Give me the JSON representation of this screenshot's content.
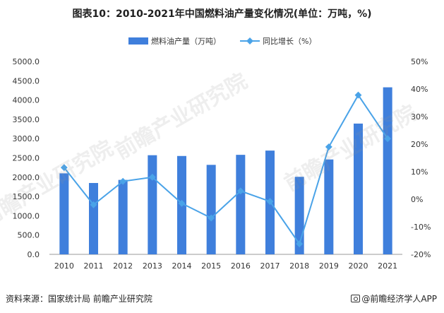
{
  "title": "图表10：2010-2021年中国燃料油产量变化情况(单位：万吨，%)",
  "source": "资料来源：国家统计局 前瞻产业研究院",
  "brand": "@前瞻经济学人APP",
  "watermark": "前瞻产业研究院",
  "colors": {
    "bar": "#3f7fdc",
    "line": "#4aa3e8",
    "axis": "#999999",
    "text": "#333333"
  },
  "chart_data": {
    "type": "bar",
    "categories": [
      "2010",
      "2011",
      "2012",
      "2013",
      "2014",
      "2015",
      "2016",
      "2017",
      "2018",
      "2019",
      "2020",
      "2021"
    ],
    "series": [
      {
        "name": "燃料油产量（万吨）",
        "type": "bar",
        "axis": "left",
        "values": [
          2100,
          1850,
          1930,
          2570,
          2550,
          2320,
          2580,
          2690,
          2010,
          2460,
          3390,
          4330
        ]
      },
      {
        "name": "同比增长（%）",
        "type": "line",
        "axis": "right",
        "values": [
          11.5,
          -2.0,
          6.5,
          8.0,
          -1.5,
          -6.8,
          3.0,
          -0.8,
          -16.2,
          19.0,
          37.8,
          22.0
        ]
      }
    ],
    "y_left": {
      "min": 0,
      "max": 5000,
      "step": 500,
      "tick_labels": [
        "0.0",
        "500.0",
        "1000.0",
        "1500.0",
        "2000.0",
        "2500.0",
        "3000.0",
        "3500.0",
        "4000.0",
        "4500.0",
        "5000.0"
      ]
    },
    "y_right": {
      "min": -20,
      "max": 50,
      "step": 10,
      "tick_labels": [
        "-20%",
        "-10%",
        "0%",
        "10%",
        "20%",
        "30%",
        "40%",
        "50%"
      ]
    },
    "legend_position": "top-center",
    "grid": false
  }
}
